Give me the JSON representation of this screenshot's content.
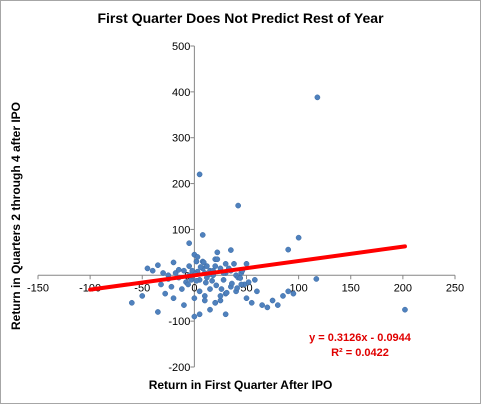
{
  "chart_data": {
    "type": "scatter",
    "title": "First Quarter Does Not Predict Rest of Year",
    "xlabel": "Return in First Quarter After IPO",
    "ylabel": "Return in Quarters 2 through 4 after IPO",
    "xlim": [
      -150,
      250
    ],
    "ylim": [
      -200,
      500
    ],
    "xticks": [
      -150,
      -100,
      -50,
      0,
      50,
      100,
      150,
      200,
      250
    ],
    "yticks": [
      -200,
      -100,
      0,
      100,
      200,
      300,
      400,
      500
    ],
    "grid": false,
    "marker_color": "#4f81bd",
    "trendline": {
      "slope": 0.3126,
      "intercept": -0.0944,
      "x_range": [
        -100,
        202
      ],
      "color": "#ff0000",
      "equation_label": "y = 0.3126x - 0.0944",
      "r2_label": "R² = 0.0422"
    },
    "series": [
      {
        "x": [
          118,
          5,
          42,
          8,
          100,
          90,
          -5,
          -20,
          0,
          22,
          35,
          20,
          30,
          -2,
          3,
          -35,
          -40,
          -45,
          -30,
          -25,
          -18,
          -15,
          -10,
          -5,
          2,
          5,
          8,
          10,
          12,
          15,
          18,
          20,
          25,
          28,
          30,
          35,
          40,
          45,
          48,
          50,
          -8,
          -12,
          -22,
          -28,
          -32,
          0,
          5,
          10,
          15,
          20,
          25,
          30,
          35,
          40,
          45,
          50,
          55,
          60,
          65,
          70,
          75,
          80,
          85,
          90,
          95,
          117,
          202,
          -60,
          -50,
          -35,
          -20,
          -10,
          0,
          5,
          10,
          15,
          20,
          25,
          30,
          -3,
          -5,
          8,
          12,
          18,
          22,
          28,
          33,
          38,
          42,
          46,
          52,
          58,
          -15,
          -25,
          3,
          6,
          9,
          14,
          17,
          21,
          26,
          31,
          36,
          41,
          2,
          -2,
          -6,
          44,
          11,
          1
        ],
        "y": [
          388,
          220,
          152,
          88,
          82,
          56,
          70,
          28,
          45,
          50,
          55,
          35,
          25,
          10,
          40,
          22,
          10,
          15,
          5,
          0,
          5,
          -5,
          10,
          20,
          30,
          -10,
          15,
          5,
          -5,
          10,
          0,
          20,
          15,
          -10,
          5,
          10,
          0,
          5,
          -20,
          25,
          -15,
          -30,
          -25,
          -40,
          -20,
          -50,
          -35,
          -45,
          -30,
          -60,
          -55,
          -40,
          -25,
          -35,
          -20,
          -50,
          -60,
          -35,
          -65,
          -70,
          -55,
          -65,
          -45,
          -35,
          -40,
          -8,
          -75,
          -60,
          -45,
          -80,
          -50,
          -65,
          -90,
          -85,
          -55,
          -75,
          -60,
          -45,
          -85,
          -10,
          0,
          30,
          20,
          10,
          35,
          5,
          15,
          25,
          -5,
          10,
          -15,
          -10,
          12,
          -8,
          8,
          18,
          28,
          2,
          -12,
          -22,
          -30,
          -38,
          -18,
          -28,
          -12,
          -2,
          -20,
          -6,
          -16,
          3
        ]
      }
    ]
  }
}
